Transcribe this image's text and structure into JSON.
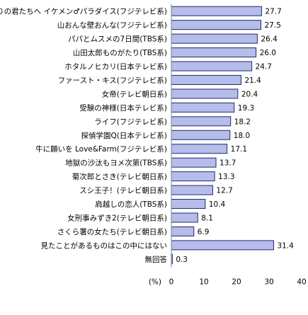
{
  "chart_data": {
    "type": "bar",
    "orientation": "horizontal",
    "categories": [
      "花ざかりの君たちへ イケメン♂パラダイス(フジテレビ系)",
      "山おんな壁おんな(フジテレビ系)",
      "パパとムスメの7日間(TBS系)",
      "山田太郎ものがたり(TBS系)",
      "ホタルノヒカリ(日本テレビ系)",
      "ファースト・キス(フジテレビ系)",
      "女帝(テレビ朝日系)",
      "受験の神様(日本テレビ系)",
      "ライフ(フジテレビ系)",
      "探偵学園Q(日本テレビ系)",
      "牛に願いを Love&Farm(フジテレビ系)",
      "地獄の沙汰もヨメ次第(TBS系)",
      "菊次郎とさき(テレビ朝日系)",
      "スシ王子！(テレビ朝日系)",
      "肩越しの恋人(TBS系)",
      "女刑事みずき2(テレビ朝日系)",
      "さくら署の女たち(テレビ朝日系)",
      "見たことがあるものはこの中にはない",
      "無回答"
    ],
    "values": [
      27.7,
      27.5,
      26.4,
      26.0,
      24.7,
      21.4,
      20.4,
      19.3,
      18.2,
      18.0,
      17.1,
      13.7,
      13.3,
      12.7,
      10.4,
      8.1,
      6.9,
      31.4,
      0.3
    ],
    "value_labels": [
      "27.7",
      "27.5",
      "26.4",
      "26.0",
      "24.7",
      "21.4",
      "20.4",
      "19.3",
      "18.2",
      "18.0",
      "17.1",
      "13.7",
      "13.3",
      "12.7",
      "10.4",
      "8.1",
      "6.9",
      "31.4",
      "0.3"
    ],
    "xunit": "(%)",
    "xlim": [
      0,
      40
    ],
    "xticks": [
      0,
      10,
      20,
      30,
      40
    ],
    "grid": false,
    "bar_fill": "#b5bde8",
    "bar_stroke": "#1f2a78"
  }
}
